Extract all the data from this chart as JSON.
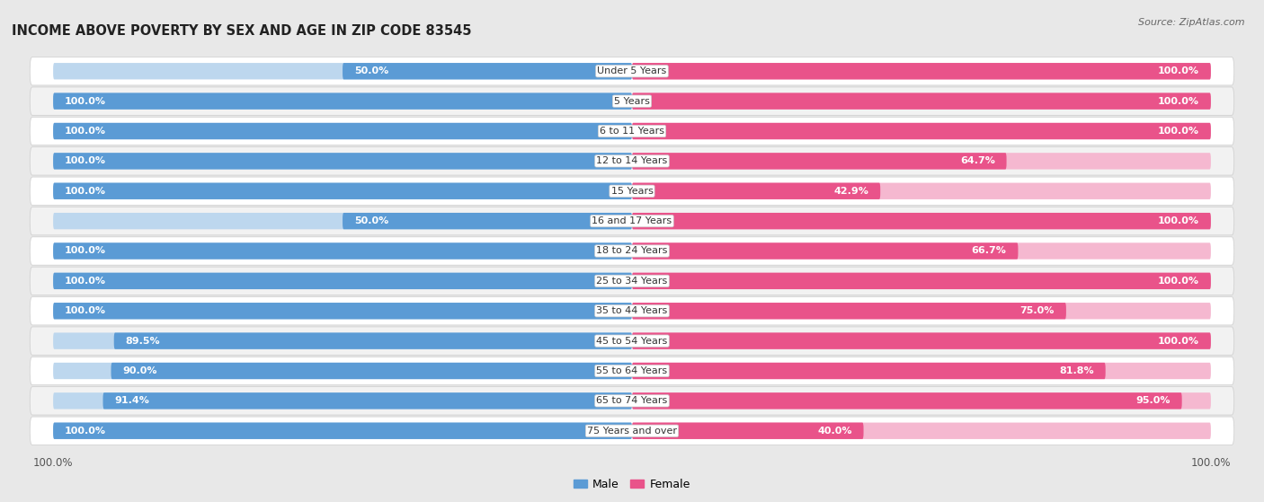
{
  "title": "INCOME ABOVE POVERTY BY SEX AND AGE IN ZIP CODE 83545",
  "source": "Source: ZipAtlas.com",
  "categories": [
    "Under 5 Years",
    "5 Years",
    "6 to 11 Years",
    "12 to 14 Years",
    "15 Years",
    "16 and 17 Years",
    "18 to 24 Years",
    "25 to 34 Years",
    "35 to 44 Years",
    "45 to 54 Years",
    "55 to 64 Years",
    "65 to 74 Years",
    "75 Years and over"
  ],
  "male_values": [
    50.0,
    100.0,
    100.0,
    100.0,
    100.0,
    50.0,
    100.0,
    100.0,
    100.0,
    89.5,
    90.0,
    91.4,
    100.0
  ],
  "female_values": [
    100.0,
    100.0,
    100.0,
    64.7,
    42.9,
    100.0,
    66.7,
    100.0,
    75.0,
    100.0,
    81.8,
    95.0,
    40.0
  ],
  "male_color_full": "#5b9bd5",
  "male_color_light": "#bdd7ee",
  "female_color_full": "#e9538a",
  "female_color_light": "#f5b8d0",
  "bar_height": 0.55,
  "background_color": "#e8e8e8",
  "row_bg_color": "#f2f2f2",
  "row_bg_alt_color": "#ffffff",
  "label_fontsize": 8.0,
  "title_fontsize": 10.5,
  "legend_fontsize": 9,
  "text_color_inside": "#ffffff",
  "text_color_outside": "#555555"
}
